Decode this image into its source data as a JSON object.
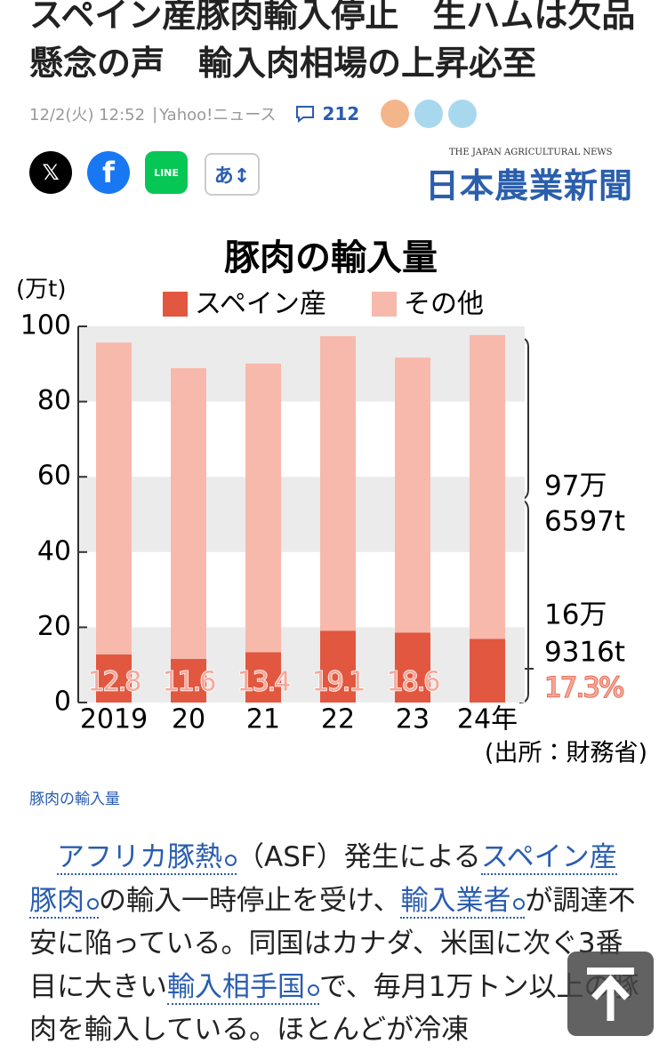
{
  "article": {
    "headline": "スペイン産豚肉輸入停止　生ハムは欠品懸念の声　輸入肉相場の上昇必至",
    "date": "12/2(火) 12:52",
    "source": "Yahoo!ニュース",
    "comments": "212",
    "share": [
      "𝕏",
      "f",
      "LINE",
      "あ↕"
    ],
    "logo_sub": "THE JAPAN AGRICULTURAL NEWS",
    "logo": "日本農業新聞",
    "caption": "豚肉の輸入量",
    "body": [
      {
        "text": "　"
      },
      {
        "text": "アフリカ豚熱",
        "link": true
      },
      {
        "text": "（ASF）発生による"
      },
      {
        "text": "スペイン産豚肉",
        "link": true
      },
      {
        "text": "の輸入一時停止を受け、"
      },
      {
        "text": "輸入業者",
        "link": true
      },
      {
        "text": "が調達不安に陥っている。同国はカナダ、米国に次ぐ3番目に大きい"
      },
      {
        "text": "輸入相手国",
        "link": true
      },
      {
        "text": "で、毎月1万トン以上の豚肉を輸入している。ほとんどが冷凍"
      }
    ]
  },
  "chart_data": {
    "type": "stacked-bar",
    "title": "豚肉の輸入量",
    "y_unit": "(万t)",
    "categories": [
      "2019",
      "20",
      "21",
      "22",
      "23",
      "24年"
    ],
    "series": [
      {
        "name": "スペイン産",
        "color": "#e2573f",
        "values": [
          12.8,
          11.6,
          13.4,
          19.1,
          18.6,
          16.9
        ],
        "value_labels": [
          "12.8",
          "11.6",
          "13.4",
          "19.1",
          "18.6",
          null
        ]
      },
      {
        "name": "その他",
        "color": "#f7b9ac",
        "values": [
          82.9,
          77.3,
          76.7,
          78.3,
          73.1,
          80.8
        ]
      }
    ],
    "ylim": [
      0,
      100
    ],
    "yticks": [
      0,
      20,
      40,
      60,
      80,
      100
    ],
    "grid": true,
    "annotations": [
      "97万",
      "6597t",
      "16万",
      "9316t",
      "17.3%"
    ],
    "note": "(出所：財務省)"
  }
}
